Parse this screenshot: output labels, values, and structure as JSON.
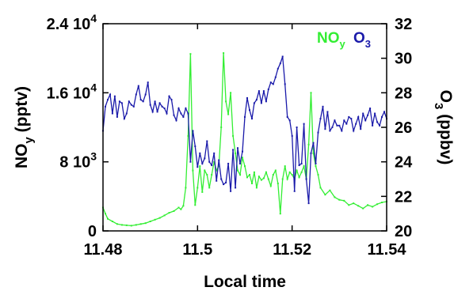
{
  "chart_data": {
    "type": "line",
    "xlabel": "Local time",
    "xlim": [
      11.48,
      11.54
    ],
    "x_ticks": [
      "11.48",
      "11.5",
      "11.52",
      "11.54"
    ],
    "left_axis": {
      "label_main": "NO",
      "label_sub": "y",
      "label_unit": " (pptv)",
      "ylim": [
        0,
        24000
      ],
      "ticks": [
        {
          "value": 0,
          "mantissa": "0",
          "exponent": ""
        },
        {
          "value": 8000,
          "mantissa": "8 10",
          "exponent": "3"
        },
        {
          "value": 16000,
          "mantissa": "1.6 10",
          "exponent": "4"
        },
        {
          "value": 24000,
          "mantissa": "2.4 10",
          "exponent": "4"
        }
      ]
    },
    "right_axis": {
      "label_main": "O",
      "label_sub": "3",
      "label_unit": " (ppbv)",
      "ylim": [
        20,
        32
      ],
      "ticks": [
        "20",
        "22",
        "24",
        "26",
        "28",
        "30",
        "32"
      ]
    },
    "legend": [
      {
        "main": "NO",
        "sub": "y",
        "color": "#33ee33"
      },
      {
        "main": "O",
        "sub": "3",
        "color": "#1a1aaa"
      }
    ],
    "series": [
      {
        "name": "NOy",
        "axis": "left",
        "color": "#33ee33",
        "x": [
          11.48,
          11.4805,
          11.481,
          11.482,
          11.483,
          11.484,
          11.485,
          11.486,
          11.487,
          11.488,
          11.489,
          11.49,
          11.491,
          11.492,
          11.493,
          11.494,
          11.495,
          11.496,
          11.4965,
          11.497,
          11.4975,
          11.498,
          11.4985,
          11.499,
          11.4995,
          11.5,
          11.5005,
          11.501,
          11.5015,
          11.502,
          11.5025,
          11.503,
          11.5035,
          11.504,
          11.5045,
          11.505,
          11.5055,
          11.506,
          11.5065,
          11.507,
          11.5075,
          11.508,
          11.5085,
          11.509,
          11.5095,
          11.51,
          11.5105,
          11.511,
          11.5115,
          11.512,
          11.5125,
          11.513,
          11.5135,
          11.514,
          11.5145,
          11.515,
          11.5155,
          11.516,
          11.5165,
          11.517,
          11.5175,
          11.518,
          11.5185,
          11.519,
          11.5195,
          11.52,
          11.5205,
          11.521,
          11.5215,
          11.522,
          11.5225,
          11.523,
          11.5235,
          11.524,
          11.5245,
          11.525,
          11.5255,
          11.526,
          11.527,
          11.528,
          11.529,
          11.53,
          11.531,
          11.532,
          11.533,
          11.534,
          11.535,
          11.536,
          11.537,
          11.538,
          11.539,
          11.54
        ],
        "values": [
          2700,
          2000,
          1400,
          1100,
          800,
          700,
          650,
          600,
          700,
          800,
          900,
          1100,
          1300,
          1500,
          1800,
          2100,
          2300,
          2700,
          2500,
          2900,
          5000,
          11000,
          20500,
          7000,
          3000,
          5000,
          7500,
          4500,
          7000,
          6500,
          5000,
          6500,
          8000,
          7000,
          7500,
          12000,
          20600,
          15000,
          13500,
          16000,
          11000,
          9000,
          7000,
          6500,
          8500,
          7500,
          6200,
          6500,
          5500,
          6800,
          5000,
          6300,
          5900,
          6100,
          6800,
          6000,
          5200,
          6500,
          7000,
          5500,
          2000,
          6000,
          7500,
          6000,
          6800,
          6500,
          6000,
          7000,
          6200,
          6800,
          7500,
          6000,
          10000,
          16000,
          9000,
          7500,
          6500,
          5000,
          4200,
          4700,
          3900,
          3600,
          3500,
          3000,
          3200,
          2900,
          2600,
          3000,
          2800,
          3100,
          3300,
          3400
        ]
      },
      {
        "name": "O3",
        "axis": "right",
        "color": "#1a1aaa",
        "x": [
          11.48,
          11.4805,
          11.481,
          11.4815,
          11.482,
          11.4825,
          11.483,
          11.4835,
          11.484,
          11.4845,
          11.485,
          11.4855,
          11.486,
          11.4865,
          11.487,
          11.4875,
          11.488,
          11.4885,
          11.489,
          11.4895,
          11.49,
          11.4905,
          11.491,
          11.4915,
          11.492,
          11.4925,
          11.493,
          11.4935,
          11.494,
          11.4945,
          11.495,
          11.4955,
          11.496,
          11.4965,
          11.497,
          11.4975,
          11.498,
          11.4985,
          11.499,
          11.4995,
          11.5,
          11.5005,
          11.501,
          11.5015,
          11.502,
          11.5025,
          11.503,
          11.5035,
          11.504,
          11.5045,
          11.505,
          11.5055,
          11.506,
          11.5065,
          11.507,
          11.5075,
          11.508,
          11.5085,
          11.509,
          11.5095,
          11.51,
          11.5105,
          11.511,
          11.5115,
          11.512,
          11.5125,
          11.513,
          11.5135,
          11.514,
          11.5145,
          11.515,
          11.5155,
          11.516,
          11.5165,
          11.517,
          11.5175,
          11.518,
          11.5185,
          11.519,
          11.5195,
          11.52,
          11.5205,
          11.521,
          11.5215,
          11.522,
          11.5225,
          11.523,
          11.5235,
          11.524,
          11.5245,
          11.525,
          11.5255,
          11.526,
          11.5265,
          11.527,
          11.5275,
          11.528,
          11.5285,
          11.529,
          11.5295,
          11.53,
          11.5305,
          11.531,
          11.5315,
          11.532,
          11.5325,
          11.533,
          11.5335,
          11.534,
          11.5345,
          11.535,
          11.5355,
          11.536,
          11.5365,
          11.537,
          11.5375,
          11.538,
          11.5385,
          11.539,
          11.5395,
          11.54
        ],
        "values": [
          25.8,
          27.2,
          27.6,
          27.9,
          26.8,
          27.8,
          26.6,
          27.5,
          27.4,
          26.5,
          26.8,
          27.5,
          27.3,
          27.2,
          27.9,
          28.4,
          27.6,
          27.5,
          27.9,
          28.6,
          27.3,
          26.9,
          27.5,
          26.9,
          27.4,
          27.2,
          27.1,
          26.8,
          27.8,
          27.6,
          26.7,
          26.4,
          27.1,
          26.8,
          26.6,
          27.1,
          26.8,
          24.0,
          25.8,
          24.9,
          23.7,
          24.5,
          23.9,
          24.2,
          25.2,
          24.0,
          23.8,
          24.5,
          22.9,
          24.1,
          23.0,
          22.7,
          22.8,
          23.9,
          22.3,
          24.7,
          22.5,
          24.8,
          23.9,
          24.6,
          26.6,
          27.7,
          27.0,
          26.5,
          27.4,
          27.6,
          28.1,
          27.4,
          28.1,
          27.5,
          28.2,
          28.6,
          28.5,
          28.9,
          29.4,
          29.7,
          30.1,
          28.5,
          26.6,
          26.4,
          25.5,
          22.3,
          26.0,
          23.8,
          23.9,
          26.2,
          23.0,
          21.6,
          24.5,
          25.1,
          23.9,
          25.7,
          26.5,
          27.2,
          25.9,
          26.9,
          25.8,
          26.0,
          26.4,
          26.1,
          26.1,
          25.8,
          26.4,
          26.2,
          26.6,
          26.5,
          25.8,
          26.2,
          26.6,
          25.9,
          26.8,
          26.4,
          26.7,
          27.1,
          26.1,
          26.8,
          26.3,
          26.1,
          26.6,
          26.9,
          26.5
        ]
      }
    ]
  }
}
